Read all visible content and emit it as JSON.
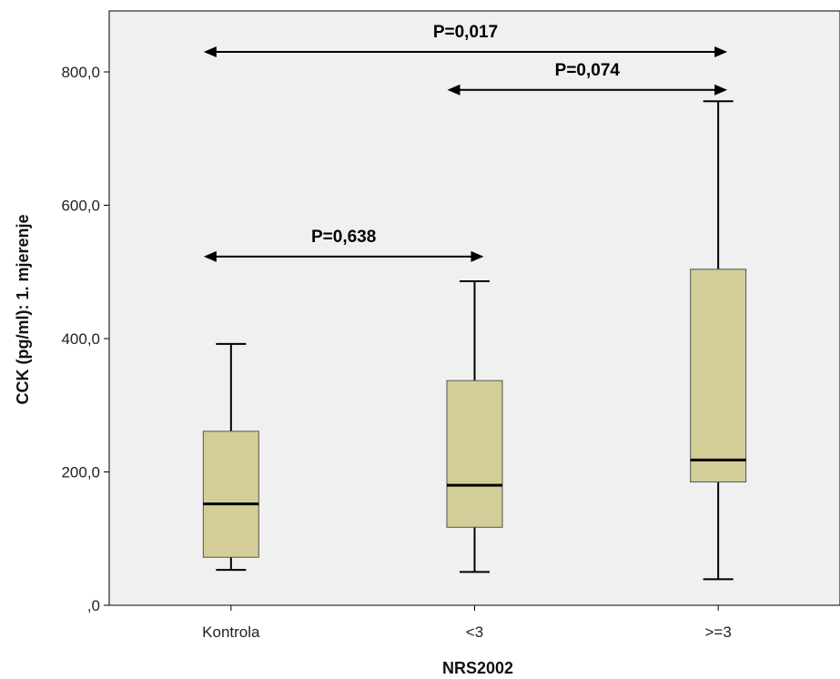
{
  "chart_data": {
    "type": "boxplot",
    "xlabel": "NRS2002",
    "ylabel": "CCK (pg/ml): 1. mjerenje",
    "ylim": [
      0,
      870
    ],
    "yticks": [
      0,
      200,
      400,
      600,
      800
    ],
    "ytick_labels": [
      ",0",
      "200,0",
      "400,0",
      "600,0",
      "800,0"
    ],
    "grid": false,
    "colors": {
      "plot_bg": "#f0f0f0",
      "box_fill": "#d3cd98",
      "box_stroke": "#555555",
      "median": "#000000",
      "whisker": "#000000"
    },
    "categories": [
      "Kontrola",
      "<3",
      ">=3"
    ],
    "boxes": [
      {
        "category": "Kontrola",
        "min": 53,
        "q1": 72,
        "median": 152,
        "q3": 261,
        "max": 392
      },
      {
        "category": "<3",
        "min": 50,
        "q1": 117,
        "median": 180,
        "q3": 337,
        "max": 486
      },
      {
        "category": ">=3",
        "min": 39,
        "q1": 185,
        "median": 218,
        "q3": 504,
        "max": 756
      }
    ],
    "annotations": [
      {
        "text": "P=0,017",
        "from": "Kontrola",
        "to": ">=3",
        "y": 830
      },
      {
        "text": "P=0,074",
        "from": "<3",
        "to": ">=3",
        "y": 773
      },
      {
        "text": "P=0,638",
        "from": "Kontrola",
        "to": "<3",
        "y": 523
      }
    ]
  }
}
